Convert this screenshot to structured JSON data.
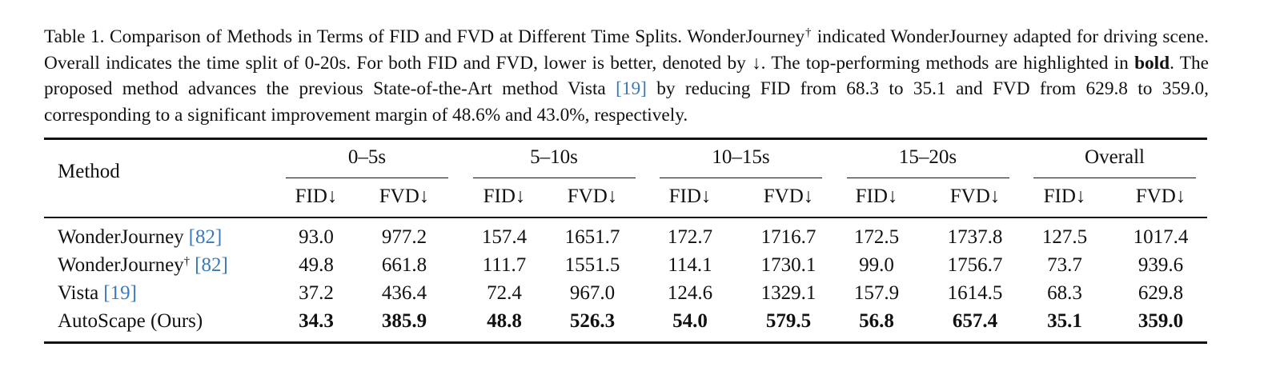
{
  "caption": [
    "Table 1. Comparison of Methods in Terms of FID and FVD at Different Time Splits. WonderJourney",
    "†",
    " indicated WonderJourney adapted for driving scene. Overall indicates the time split of 0-20s. For both FID and FVD, lower is better, denoted by ↓. The top-performing methods are highlighted in ",
    "bold",
    ". The proposed method advances the previous State-of-the-Art method Vista ",
    "[19]",
    " by reducing FID from 68.3 to 35.1 and FVD from 629.8 to 359.0, corresponding to a significant improvement margin of 48.6% and 43.0%, respectively."
  ],
  "table": {
    "method_header": "Method",
    "groups": [
      "0–5s",
      "5–10s",
      "10–15s",
      "15–20s",
      "Overall"
    ],
    "columns": [
      "FID↓",
      "FVD↓",
      "FID↓",
      "FVD↓",
      "FID↓",
      "FVD↓",
      "FID↓",
      "FVD↓",
      "FID↓",
      "FVD↓"
    ],
    "rows": [
      {
        "method": "WonderJourney",
        "cite": "[82]",
        "values": [
          "93.0",
          "977.2",
          "157.4",
          "1651.7",
          "172.7",
          "1716.7",
          "172.5",
          "1737.8",
          "127.5",
          "1017.4"
        ]
      },
      {
        "method": "WonderJourney",
        "sup": "†",
        "cite": "[82]",
        "values": [
          "49.8",
          "661.8",
          "111.7",
          "1551.5",
          "114.1",
          "1730.1",
          "99.0",
          "1756.7",
          "73.7",
          "939.6"
        ]
      },
      {
        "method": "Vista",
        "cite": "[19]",
        "values": [
          "37.2",
          "436.4",
          "72.4",
          "967.0",
          "124.6",
          "1329.1",
          "157.9",
          "1614.5",
          "68.3",
          "629.8"
        ]
      },
      {
        "method": "AutoScape (Ours)",
        "bold": true,
        "values": [
          "34.3",
          "385.9",
          "48.8",
          "526.3",
          "54.0",
          "579.5",
          "56.8",
          "657.4",
          "35.1",
          "359.0"
        ]
      }
    ]
  }
}
